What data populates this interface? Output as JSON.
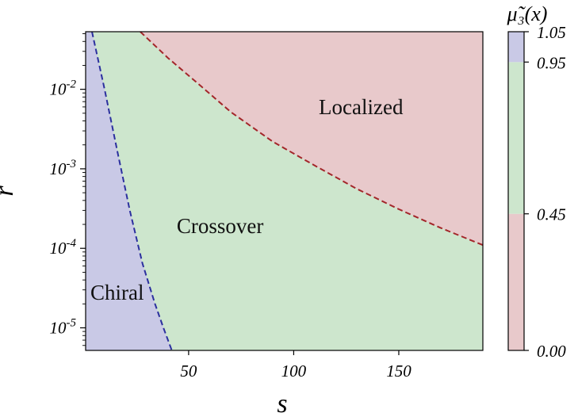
{
  "chart_data": {
    "type": "heatmap",
    "xlabel": "s",
    "ylabel": "r",
    "x_scale": "linear",
    "y_scale": "log",
    "xlim": [
      1,
      190
    ],
    "ylim": [
      5.2e-06,
      0.053
    ],
    "x_ticks": [
      50,
      100,
      150
    ],
    "x_tick_labels": [
      "50",
      "100",
      "150"
    ],
    "y_ticks": [
      1e-05,
      0.0001,
      0.001,
      0.01
    ],
    "y_tick_labels": [
      {
        "base": "10",
        "exp": "-5"
      },
      {
        "base": "10",
        "exp": "-4"
      },
      {
        "base": "10",
        "exp": "-3"
      },
      {
        "base": "10",
        "exp": "-2"
      }
    ],
    "regions": [
      {
        "label": "Chiral",
        "color": "#c9c9e6",
        "label_at": {
          "s": 16,
          "r": 2.6e-05
        }
      },
      {
        "label": "Crossover",
        "color": "#cde6cd",
        "label_at": {
          "s": 65,
          "r": 0.00018
        }
      },
      {
        "label": "Localized",
        "color": "#e8c9cb",
        "label_at": {
          "s": 132,
          "r": 0.0056
        }
      }
    ],
    "chiral_boundary": [
      {
        "s": 4,
        "r": 0.053
      },
      {
        "s": 10,
        "r": 0.01
      },
      {
        "s": 16,
        "r": 0.0017
      },
      {
        "s": 22,
        "r": 0.0003
      },
      {
        "s": 28,
        "r": 6.5e-05
      },
      {
        "s": 34,
        "r": 2e-05
      },
      {
        "s": 38,
        "r": 1e-05
      },
      {
        "s": 42,
        "r": 5.2e-06
      }
    ],
    "chiral_boundary_color": "#2b2f9e",
    "localized_boundary": [
      {
        "s": 27,
        "r": 0.053
      },
      {
        "s": 40,
        "r": 0.025
      },
      {
        "s": 55,
        "r": 0.0115
      },
      {
        "s": 70,
        "r": 0.0052
      },
      {
        "s": 90,
        "r": 0.0022
      },
      {
        "s": 110,
        "r": 0.0011
      },
      {
        "s": 130,
        "r": 0.00056
      },
      {
        "s": 150,
        "r": 0.00031
      },
      {
        "s": 170,
        "r": 0.00018
      },
      {
        "s": 190,
        "r": 0.00011
      }
    ],
    "localized_boundary_color": "#a3262a",
    "colorbar": {
      "title": "μ̃₃(x)",
      "ticks": [
        0.0,
        0.45,
        0.95,
        1.05
      ],
      "tick_labels": [
        "0.00",
        "0.45",
        "0.95",
        "1.05"
      ],
      "bands": [
        {
          "from": 0.0,
          "to": 0.45,
          "color": "#e8c9cb"
        },
        {
          "from": 0.45,
          "to": 0.95,
          "color": "#cde6cd"
        },
        {
          "from": 0.95,
          "to": 1.05,
          "color": "#c9c9e6"
        }
      ]
    },
    "grid": false
  }
}
